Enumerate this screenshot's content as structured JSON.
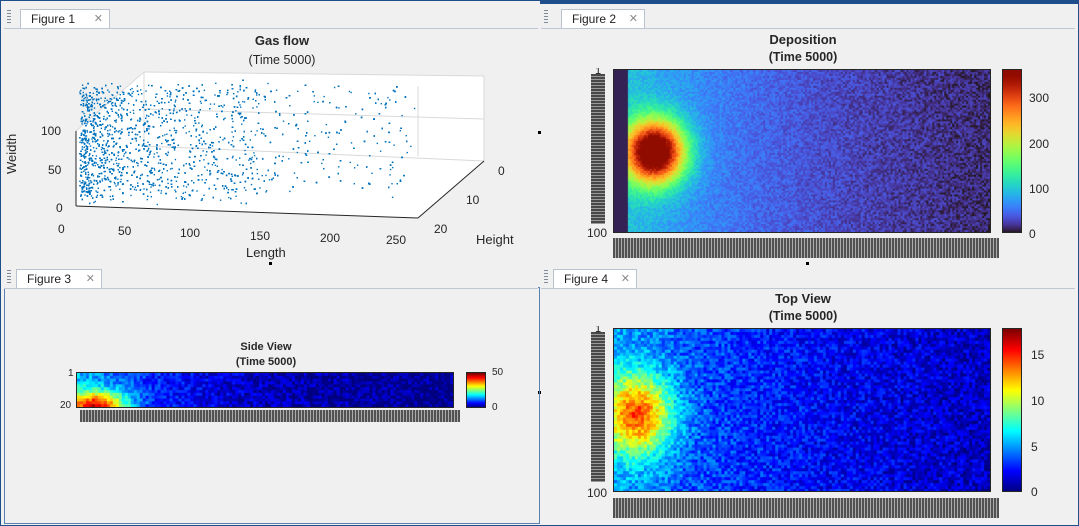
{
  "figures": [
    {
      "tab_label": "Figure 1",
      "title": "Gas flow",
      "subtitle": "(Time 5000)",
      "x_label": "Length",
      "y_label": "Weidth",
      "z_label": "Height",
      "x_ticks": [
        "0",
        "50",
        "100",
        "150",
        "200",
        "250"
      ],
      "y_ticks": [
        "0",
        "50",
        "100"
      ],
      "z_ticks": [
        "0",
        "10",
        "20"
      ],
      "marker_color": "#0072bd"
    },
    {
      "tab_label": "Figure 2",
      "title": "Deposition",
      "subtitle": "(Time 5000)",
      "colorbar_ticks": [
        "300",
        "200",
        "100",
        "0"
      ],
      "y_tick_first": "1",
      "y_tick_last": "100",
      "colormap": "turbo"
    },
    {
      "tab_label": "Figure 3",
      "title": "Side View",
      "subtitle": "(Time 5000)",
      "colorbar_ticks": [
        "50",
        "0"
      ],
      "y_tick_first": "1",
      "y_tick_last": "20",
      "colormap": "jet"
    },
    {
      "tab_label": "Figure 4",
      "title": "Top View",
      "subtitle": "(Time 5000)",
      "colorbar_ticks": [
        "15",
        "10",
        "5",
        "0"
      ],
      "y_tick_first": "1",
      "y_tick_last": "100",
      "colormap": "jet"
    }
  ],
  "close_glyph": "✕"
}
